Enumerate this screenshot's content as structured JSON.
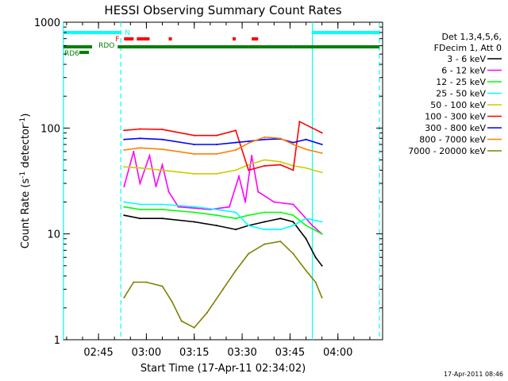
{
  "chart_data": {
    "type": "line",
    "title": "HESSI Observing Summary Count Rates",
    "xlabel": "Start Time (17-Apr-11 02:34:02)",
    "ylabel": "Count Rate (s⁻¹ detector⁻¹)",
    "ylabel_main": "Count Rate (s",
    "ylabel_sup1": "-1",
    "ylabel_mid": " detector",
    "ylabel_sup2": "-1",
    "ylabel_end": ")",
    "y_scale": "log",
    "ylim": [
      1,
      1000
    ],
    "xlim": [
      "02:34:02",
      "04:14:00"
    ],
    "x_ticks": [
      "02:45",
      "03:00",
      "03:15",
      "03:30",
      "03:45",
      "04:00"
    ],
    "y_ticks": [
      "1",
      "10",
      "100",
      "1000"
    ],
    "legend_header": [
      "Det 1,3,4,5,6,",
      "FDecim 1, Att 0"
    ],
    "legend_position": "right",
    "timestamp": "17-Apr-2011 08:46",
    "series": [
      {
        "name": "3 - 6 keV",
        "color": "#000000",
        "points": [
          [
            "02:53",
            15
          ],
          [
            "02:58",
            14
          ],
          [
            "03:05",
            14
          ],
          [
            "03:15",
            13
          ],
          [
            "03:22",
            12
          ],
          [
            "03:28",
            11
          ],
          [
            "03:32",
            12
          ],
          [
            "03:37",
            13
          ],
          [
            "03:42",
            14
          ],
          [
            "03:46",
            13
          ],
          [
            "03:50",
            9
          ],
          [
            "03:53",
            6
          ],
          [
            "03:55",
            5
          ]
        ]
      },
      {
        "name": "6 - 12 keV",
        "color": "#ff00ff",
        "points": [
          [
            "02:53",
            28
          ],
          [
            "02:56",
            60
          ],
          [
            "02:58",
            30
          ],
          [
            "03:01",
            55
          ],
          [
            "03:03",
            28
          ],
          [
            "03:05",
            45
          ],
          [
            "03:07",
            25
          ],
          [
            "03:10",
            18
          ],
          [
            "03:20",
            17
          ],
          [
            "03:26",
            18
          ],
          [
            "03:29",
            35
          ],
          [
            "03:31",
            20
          ],
          [
            "03:33",
            55
          ],
          [
            "03:35",
            25
          ],
          [
            "03:40",
            20
          ],
          [
            "03:46",
            19
          ],
          [
            "03:50",
            14
          ],
          [
            "03:52",
            12
          ],
          [
            "03:55",
            10
          ]
        ]
      },
      {
        "name": "12 - 25 keV",
        "color": "#00ff00",
        "points": [
          [
            "02:53",
            18
          ],
          [
            "02:58",
            17
          ],
          [
            "03:05",
            17
          ],
          [
            "03:15",
            16
          ],
          [
            "03:22",
            15
          ],
          [
            "03:28",
            14
          ],
          [
            "03:32",
            15
          ],
          [
            "03:37",
            16
          ],
          [
            "03:42",
            16
          ],
          [
            "03:46",
            15
          ],
          [
            "03:50",
            12
          ],
          [
            "03:55",
            10
          ]
        ]
      },
      {
        "name": "25 - 50 keV",
        "color": "#00ffff",
        "points": [
          [
            "02:53",
            20
          ],
          [
            "02:58",
            19
          ],
          [
            "03:05",
            19
          ],
          [
            "03:15",
            18
          ],
          [
            "03:22",
            17
          ],
          [
            "03:28",
            16
          ],
          [
            "03:32",
            12
          ],
          [
            "03:37",
            11
          ],
          [
            "03:42",
            11
          ],
          [
            "03:46",
            12
          ],
          [
            "03:50",
            14
          ],
          [
            "03:55",
            13
          ]
        ]
      },
      {
        "name": "50 - 100 keV",
        "color": "#cccc00",
        "points": [
          [
            "02:53",
            43
          ],
          [
            "02:58",
            42
          ],
          [
            "03:05",
            40
          ],
          [
            "03:15",
            37
          ],
          [
            "03:22",
            37
          ],
          [
            "03:28",
            40
          ],
          [
            "03:32",
            45
          ],
          [
            "03:37",
            50
          ],
          [
            "03:42",
            48
          ],
          [
            "03:46",
            44
          ],
          [
            "03:50",
            42
          ],
          [
            "03:55",
            38
          ]
        ]
      },
      {
        "name": "100 - 300 keV",
        "color": "#ff0000",
        "points": [
          [
            "02:53",
            95
          ],
          [
            "02:58",
            98
          ],
          [
            "03:05",
            97
          ],
          [
            "03:15",
            85
          ],
          [
            "03:22",
            85
          ],
          [
            "03:28",
            95
          ],
          [
            "03:32",
            40
          ],
          [
            "03:37",
            44
          ],
          [
            "03:42",
            45
          ],
          [
            "03:46",
            40
          ],
          [
            "03:48",
            115
          ],
          [
            "03:52",
            100
          ],
          [
            "03:55",
            90
          ]
        ]
      },
      {
        "name": "300 - 800 keV",
        "color": "#0000ff",
        "points": [
          [
            "02:53",
            78
          ],
          [
            "02:58",
            80
          ],
          [
            "03:05",
            78
          ],
          [
            "03:15",
            70
          ],
          [
            "03:22",
            70
          ],
          [
            "03:28",
            73
          ],
          [
            "03:32",
            75
          ],
          [
            "03:37",
            78
          ],
          [
            "03:42",
            79
          ],
          [
            "03:46",
            73
          ],
          [
            "03:50",
            78
          ],
          [
            "03:55",
            70
          ]
        ]
      },
      {
        "name": "800 - 7000 keV",
        "color": "#ff8000",
        "points": [
          [
            "02:53",
            62
          ],
          [
            "02:58",
            65
          ],
          [
            "03:05",
            63
          ],
          [
            "03:15",
            57
          ],
          [
            "03:22",
            57
          ],
          [
            "03:28",
            62
          ],
          [
            "03:32",
            72
          ],
          [
            "03:37",
            82
          ],
          [
            "03:42",
            80
          ],
          [
            "03:46",
            70
          ],
          [
            "03:50",
            63
          ],
          [
            "03:55",
            58
          ]
        ]
      },
      {
        "name": "7000 - 20000 keV",
        "color": "#808000",
        "points": [
          [
            "02:53",
            2.5
          ],
          [
            "02:56",
            3.5
          ],
          [
            "03:00",
            3.5
          ],
          [
            "03:05",
            3.2
          ],
          [
            "03:08",
            2.3
          ],
          [
            "03:11",
            1.5
          ],
          [
            "03:15",
            1.3
          ],
          [
            "03:19",
            1.8
          ],
          [
            "03:24",
            3.0
          ],
          [
            "03:28",
            4.5
          ],
          [
            "03:32",
            6.5
          ],
          [
            "03:37",
            8.0
          ],
          [
            "03:42",
            8.5
          ],
          [
            "03:46",
            6.5
          ],
          [
            "03:50",
            4.5
          ],
          [
            "03:53",
            3.5
          ],
          [
            "03:55",
            2.5
          ]
        ]
      }
    ],
    "flags": [
      {
        "label": "N",
        "color": "#00ffff",
        "segments": [
          [
            "02:34",
            "02:52"
          ],
          [
            "03:52",
            "04:13"
          ]
        ]
      },
      {
        "label": "F",
        "color": "#ff0000",
        "segments": [
          [
            "02:53",
            "02:56"
          ],
          [
            "02:57",
            "02:59"
          ],
          [
            "02:59",
            "03:01"
          ],
          [
            "03:07",
            "03:08"
          ],
          [
            "03:27",
            "03:28"
          ],
          [
            "03:33",
            "03:35"
          ]
        ]
      },
      {
        "label": "RDO",
        "color": "#008000",
        "segments": [
          [
            "02:34",
            "02:43"
          ],
          [
            "02:51",
            "03:32"
          ],
          [
            "03:32",
            "03:46"
          ],
          [
            "03:46",
            "04:13"
          ]
        ]
      },
      {
        "label": "RD6",
        "color": "#008000",
        "segments": [
          [
            "02:39",
            "02:42"
          ]
        ]
      }
    ],
    "vertical_markers": [
      {
        "time": "02:34",
        "color": "#00ffff",
        "style": "solid"
      },
      {
        "time": "02:52",
        "color": "#00ffff",
        "style": "dashed"
      },
      {
        "time": "03:52",
        "color": "#00ffff",
        "style": "solid"
      },
      {
        "time": "04:13",
        "color": "#00ffff",
        "style": "dashed"
      }
    ]
  }
}
